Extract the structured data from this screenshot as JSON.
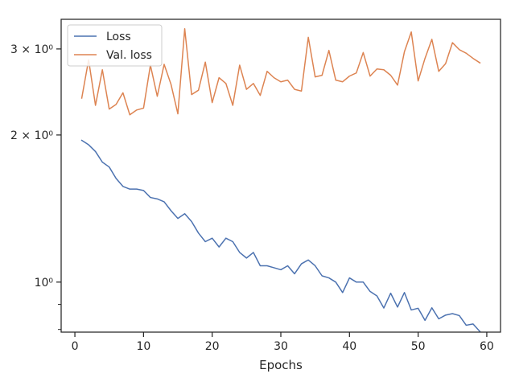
{
  "chart_data": {
    "type": "line",
    "title": "",
    "xlabel": "Epochs",
    "ylabel": "",
    "xlim": [
      -2,
      62
    ],
    "ylim": [
      0.79,
      3.45
    ],
    "yscale": "log",
    "grid": false,
    "legend_position": "top-left",
    "x_ticks": [
      0,
      10,
      20,
      30,
      40,
      50,
      60
    ],
    "x_tick_labels": [
      "0",
      "10",
      "20",
      "30",
      "40",
      "50",
      "60"
    ],
    "y_major_ticks": [
      1,
      2,
      3
    ],
    "y_major_labels": [
      "10⁰",
      "2 × 10⁰",
      "3 × 10⁰"
    ],
    "y_minor_ticks": [
      0.8,
      0.9
    ],
    "x": [
      1,
      2,
      3,
      4,
      5,
      6,
      7,
      8,
      9,
      10,
      11,
      12,
      13,
      14,
      15,
      16,
      17,
      18,
      19,
      20,
      21,
      22,
      23,
      24,
      25,
      26,
      27,
      28,
      29,
      30,
      31,
      32,
      33,
      34,
      35,
      36,
      37,
      38,
      39,
      40,
      41,
      42,
      43,
      44,
      45,
      46,
      47,
      48,
      49,
      50,
      51,
      52,
      53,
      54,
      55,
      56,
      57,
      58,
      59
    ],
    "series": [
      {
        "name": "Loss",
        "color": "#4c72b0",
        "values": [
          1.95,
          1.91,
          1.85,
          1.76,
          1.72,
          1.63,
          1.57,
          1.55,
          1.55,
          1.54,
          1.49,
          1.48,
          1.46,
          1.4,
          1.35,
          1.38,
          1.33,
          1.26,
          1.21,
          1.23,
          1.18,
          1.23,
          1.21,
          1.15,
          1.12,
          1.15,
          1.08,
          1.08,
          1.07,
          1.06,
          1.08,
          1.04,
          1.09,
          1.11,
          1.08,
          1.03,
          1.02,
          1.0,
          0.952,
          1.02,
          1.0,
          1.0,
          0.957,
          0.937,
          0.885,
          0.949,
          0.889,
          0.952,
          0.877,
          0.884,
          0.835,
          0.886,
          0.841,
          0.856,
          0.862,
          0.854,
          0.816,
          0.821,
          0.792
        ]
      },
      {
        "name": "Val. loss",
        "color": "#dd8452",
        "values": [
          2.38,
          2.85,
          2.3,
          2.72,
          2.26,
          2.31,
          2.44,
          2.2,
          2.25,
          2.27,
          2.78,
          2.4,
          2.79,
          2.54,
          2.21,
          3.3,
          2.42,
          2.47,
          2.82,
          2.33,
          2.62,
          2.55,
          2.3,
          2.78,
          2.48,
          2.55,
          2.41,
          2.7,
          2.62,
          2.57,
          2.59,
          2.48,
          2.46,
          3.17,
          2.63,
          2.65,
          2.98,
          2.59,
          2.57,
          2.64,
          2.68,
          2.95,
          2.64,
          2.73,
          2.72,
          2.65,
          2.53,
          2.96,
          3.25,
          2.58,
          2.87,
          3.14,
          2.7,
          2.8,
          3.09,
          2.99,
          2.94,
          2.87,
          2.81
        ]
      }
    ]
  }
}
